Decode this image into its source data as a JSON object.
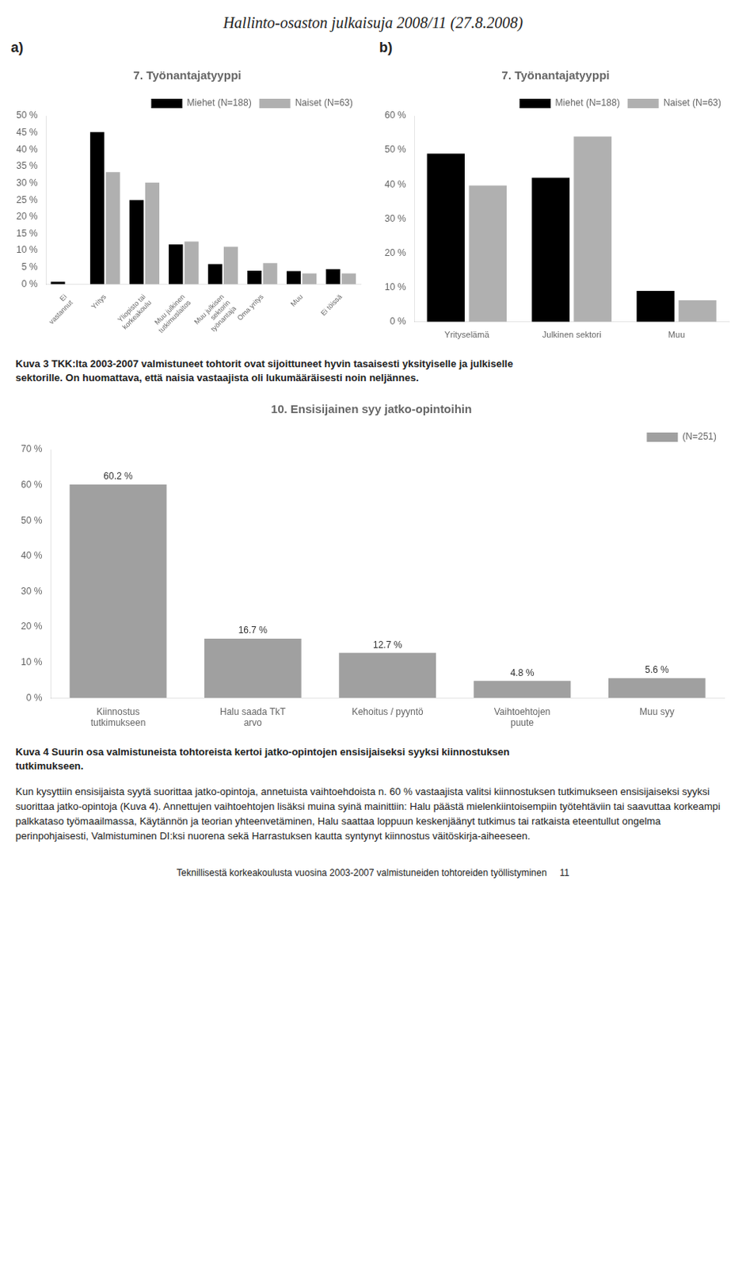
{
  "title": "Hallinto-osaston julkaisuja 2008/11 (27.8.2008)",
  "chart_data": [
    {
      "type": "bar",
      "title": "7. Työnantajatyyppi",
      "annotations": [
        "a)"
      ],
      "categories": [
        "Ei\nvastannut",
        "Yritys",
        "Yliopisto tai\nkorkeakoulu",
        "Muu julkinen\ntutkimuslaitos",
        "Muu julkisen\nsektorin\ntyönantaja",
        "Oma yritys",
        "Muu",
        "Ei töissä"
      ],
      "series": [
        {
          "name": "Miehet (N=188)",
          "color": "#000000",
          "values": [
            0.7,
            45.2,
            25.0,
            11.8,
            6.0,
            4.0,
            3.9,
            4.5
          ]
        },
        {
          "name": "Naiset (N=63)",
          "color": "#b0b0b0",
          "values": [
            0.0,
            33.3,
            30.2,
            12.7,
            11.1,
            6.3,
            3.2,
            3.2
          ]
        }
      ],
      "ylim": [
        0,
        50
      ],
      "yticks": [
        {
          "value": 0,
          "label": "0 %"
        },
        {
          "value": 5,
          "label": "5 %"
        },
        {
          "value": 10,
          "label": "10 %"
        },
        {
          "value": 15,
          "label": "15 %"
        },
        {
          "value": 20,
          "label": "20 %"
        },
        {
          "value": 25,
          "label": "25 %"
        },
        {
          "value": 30,
          "label": "30 %"
        },
        {
          "value": 35,
          "label": "35 %"
        },
        {
          "value": 40,
          "label": "40 %"
        },
        {
          "value": 45,
          "label": "45 %"
        },
        {
          "value": 50,
          "label": "50 %"
        }
      ],
      "grid": false,
      "legend": "upper right"
    },
    {
      "type": "bar",
      "title": "7. Työnantajatyyppi",
      "annotations": [
        "b)"
      ],
      "categories": [
        "Yrityselämä",
        "Julkinen sektori",
        "Muu"
      ],
      "series": [
        {
          "name": "Miehet (N=188)",
          "color": "#000000",
          "values": [
            49.0,
            42.0,
            9.0
          ]
        },
        {
          "name": "Naiset (N=63)",
          "color": "#b0b0b0",
          "values": [
            39.7,
            54.0,
            6.3
          ]
        }
      ],
      "ylim": [
        0,
        60
      ],
      "yticks": [
        {
          "value": 0,
          "label": "0 %"
        },
        {
          "value": 10,
          "label": "10 %"
        },
        {
          "value": 20,
          "label": "20 %"
        },
        {
          "value": 30,
          "label": "30 %"
        },
        {
          "value": 40,
          "label": "40 %"
        },
        {
          "value": 50,
          "label": "50 %"
        },
        {
          "value": 60,
          "label": "60 %"
        }
      ],
      "grid": false,
      "legend": "upper right"
    },
    {
      "type": "bar",
      "title": "10. Ensisijainen syy jatko-opintoihin",
      "categories": [
        "Kiinnostus\ntutkimukseen",
        "Halu saada TkT\narvo",
        "Kehoitus / pyyntö",
        "Vaihtoehtojen\npuute",
        "Muu syy"
      ],
      "series": [
        {
          "name": "(N=251)",
          "color": "#a0a0a0",
          "values": [
            60.2,
            16.7,
            12.7,
            4.8,
            5.6
          ],
          "value_labels": [
            "60.2 %",
            "16.7 %",
            "12.7 %",
            "4.8 %",
            "5.6 %"
          ]
        }
      ],
      "ylim": [
        0,
        70
      ],
      "yticks": [
        {
          "value": 0,
          "label": "0 %"
        },
        {
          "value": 10,
          "label": "10 %"
        },
        {
          "value": 20,
          "label": "20 %"
        },
        {
          "value": 30,
          "label": "30 %"
        },
        {
          "value": 40,
          "label": "40 %"
        },
        {
          "value": 50,
          "label": "50 %"
        },
        {
          "value": 60,
          "label": "60 %"
        },
        {
          "value": 70,
          "label": "70 %"
        }
      ],
      "grid": false,
      "legend": "upper right",
      "data_labels": true
    }
  ],
  "annotations": [
    "Kuva 3 TKK:lta 2003-2007 valmistuneet tohtorit ovat sijoittuneet hyvin tasaisesti yksityiselle ja julkiselle\nsektorille. On huomattava, että naisia vastaajista oli lukumääräisesti noin neljännes.",
    "Kuva 4 Suurin osa valmistuneista tohtoreista kertoi jatko-opintojen ensisijaiseksi syyksi kiinnostuksen\ntutkimukseen.",
    "Kun kysyttiin ensisijaista syytä suorittaa jatko-opintoja, annetuista vaihtoehdoista n. 60 % vastaajista valitsi kiinnostuksen tutkimukseen ensisijaiseksi syyksi suorittaa jatko-opintoja (Kuva 4). Annettujen vaihtoehtojen lisäksi muina syinä mainittiin: Halu päästä mielenkiintoisempiin työtehtäviin tai saavuttaa korkeampi palkkataso työmaailmassa, Käytännön ja teorian yhteenvetäminen, Halu saattaa loppuun keskenjäänyt tutkimus tai ratkaista eteentullut ongelma perinpohjaisesti, Valmistuminen DI:ksi nuorena sekä Harrastuksen kautta syntynyt kiinnostus väitöskirja-aiheeseen.",
    "Teknillisestä korkeakoulusta vuosina 2003-2007 valmistuneiden tohtoreiden työllistyminen     11"
  ]
}
